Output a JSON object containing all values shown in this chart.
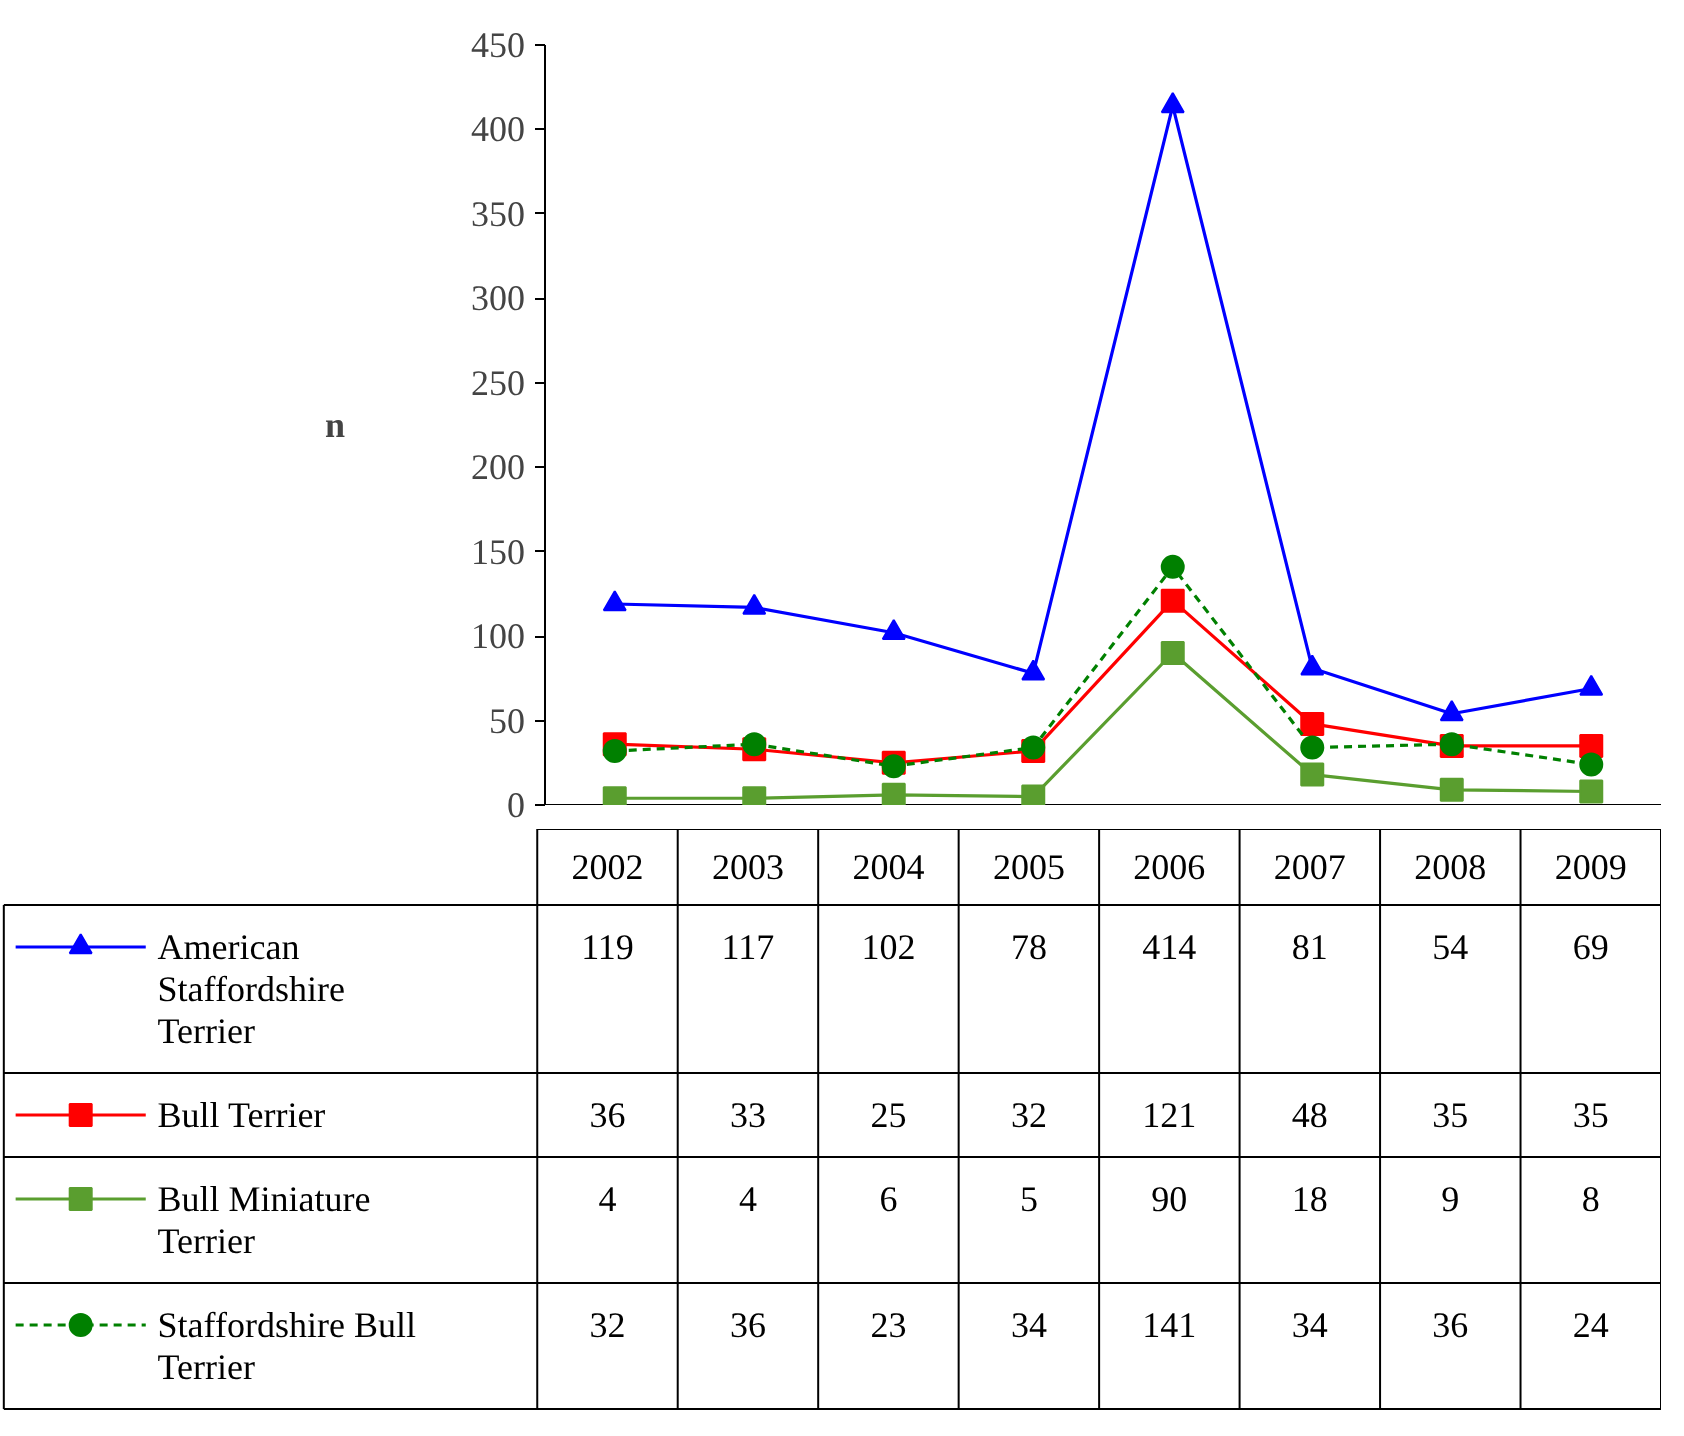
{
  "chart_data": {
    "type": "line",
    "ylabel": "n",
    "categories": [
      "2002",
      "2003",
      "2004",
      "2005",
      "2006",
      "2007",
      "2008",
      "2009"
    ],
    "ylim": [
      0,
      450
    ],
    "yticks": [
      0,
      50,
      100,
      150,
      200,
      250,
      300,
      350,
      400,
      450
    ],
    "grid": false,
    "tick_labels": "y",
    "data_labels": true,
    "legend": "bottom left",
    "series": [
      {
        "name": "American Staffordshire Terrier",
        "color": "#0000ff",
        "marker": "triangle",
        "line_style": "solid",
        "values": [
          119,
          117,
          102,
          78,
          414,
          81,
          54,
          69
        ]
      },
      {
        "name": "Bull Terrier",
        "color": "#ff0000",
        "marker": "square",
        "line_style": "solid",
        "values": [
          36,
          33,
          25,
          32,
          121,
          48,
          35,
          35
        ]
      },
      {
        "name": "Bull Miniature Terrier",
        "color": "#5a9e2f",
        "marker": "square",
        "line_style": "solid",
        "values": [
          4,
          4,
          6,
          5,
          90,
          18,
          9,
          8
        ]
      },
      {
        "name": "Staffordshire Bull Terrier",
        "color": "#008000",
        "marker": "circle",
        "line_style": "dashed",
        "values": [
          32,
          36,
          23,
          34,
          141,
          34,
          36,
          24
        ]
      }
    ]
  }
}
